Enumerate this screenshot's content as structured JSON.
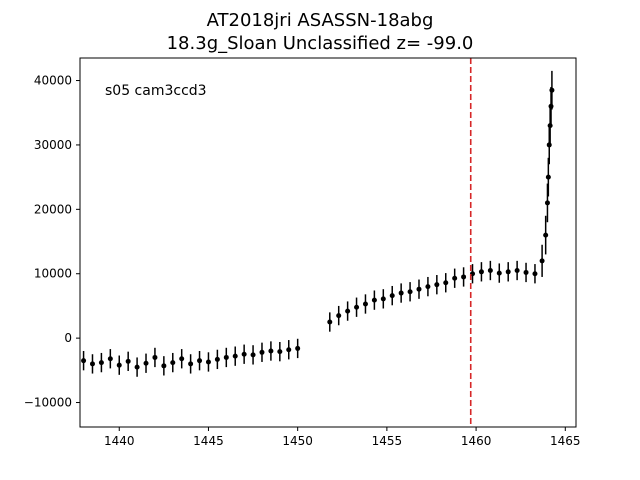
{
  "chart_data": {
    "type": "scatter",
    "title_line1": "AT2018jri  ASASSN-18abg",
    "title_line2": "18.3g_Sloan Unclassified z= -99.0",
    "annotation": "s05 cam3ccd3",
    "xlabel": "",
    "ylabel": "",
    "xlim": [
      1437.8,
      1465.6
    ],
    "ylim": [
      -13800,
      43500
    ],
    "x_ticks": [
      1440,
      1445,
      1450,
      1455,
      1460,
      1465
    ],
    "y_ticks": [
      -10000,
      0,
      10000,
      20000,
      30000,
      40000
    ],
    "x_tick_labels": [
      "1440",
      "1445",
      "1450",
      "1455",
      "1460",
      "1465"
    ],
    "y_tick_labels": [
      "−10000",
      "0",
      "10000",
      "20000",
      "30000",
      "40000"
    ],
    "grid": false,
    "marker_color": "#000000",
    "vline": {
      "x": 1459.7,
      "color": "#d62728",
      "style": "dashed"
    },
    "series": [
      {
        "marker": "point-with-errorbar",
        "x": [
          1438.0,
          1438.5,
          1439.0,
          1439.5,
          1440.0,
          1440.5,
          1441.0,
          1441.5,
          1442.0,
          1442.5,
          1443.0,
          1443.5,
          1444.0,
          1444.5,
          1445.0,
          1445.5,
          1446.0,
          1446.5,
          1447.0,
          1447.5,
          1448.0,
          1448.5,
          1449.0,
          1449.5,
          1450.0,
          1451.8,
          1452.3,
          1452.8,
          1453.3,
          1453.8,
          1454.3,
          1454.8,
          1455.3,
          1455.8,
          1456.3,
          1456.8,
          1457.3,
          1457.8,
          1458.3,
          1458.8,
          1459.3,
          1459.8,
          1460.3,
          1460.8,
          1461.3,
          1461.8,
          1462.3,
          1462.8,
          1463.3,
          1463.7,
          1463.9,
          1464.0,
          1464.05,
          1464.1,
          1464.15,
          1464.2,
          1464.25
        ],
        "y": [
          -3500,
          -4000,
          -3800,
          -3200,
          -4200,
          -3600,
          -4500,
          -3900,
          -3000,
          -4300,
          -3800,
          -3200,
          -4000,
          -3500,
          -3700,
          -3300,
          -3000,
          -2800,
          -2500,
          -2600,
          -2200,
          -2000,
          -2100,
          -1800,
          -1600,
          2500,
          3500,
          4200,
          4800,
          5300,
          5900,
          6100,
          6600,
          7000,
          7200,
          7600,
          8000,
          8300,
          8600,
          9300,
          9500,
          10000,
          10300,
          10500,
          10100,
          10300,
          10500,
          10200,
          10000,
          12000,
          16000,
          21000,
          25000,
          30000,
          33000,
          36000,
          38500
        ],
        "yerr": [
          1500,
          1500,
          1500,
          1500,
          1500,
          1500,
          1500,
          1500,
          1500,
          1500,
          1500,
          1500,
          1500,
          1500,
          1500,
          1500,
          1500,
          1500,
          1500,
          1500,
          1500,
          1500,
          1500,
          1500,
          1500,
          1500,
          1500,
          1500,
          1500,
          1500,
          1500,
          1500,
          1500,
          1500,
          1500,
          1500,
          1500,
          1500,
          1500,
          1500,
          1500,
          1500,
          1500,
          1500,
          1500,
          1500,
          1500,
          1500,
          1500,
          2500,
          3000,
          3000,
          3000,
          3000,
          3000,
          3000,
          3000
        ]
      }
    ]
  }
}
